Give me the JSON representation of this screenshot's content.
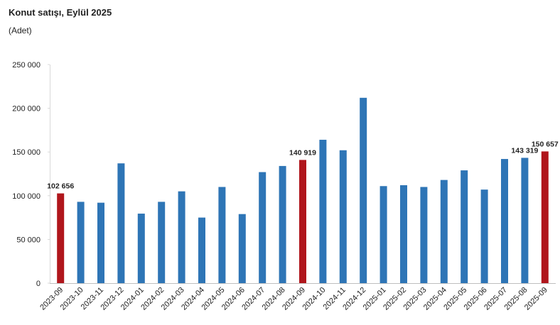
{
  "chart_data": {
    "type": "bar",
    "title": "Konut satışı, Eylül 2025",
    "subtitle": "(Adet)",
    "categories": [
      "2023-09",
      "2023-10",
      "2023-11",
      "2023-12",
      "2024-01",
      "2024-02",
      "2024-03",
      "2024-04",
      "2024-05",
      "2024-06",
      "2024-07",
      "2024-08",
      "2024-09",
      "2024-10",
      "2024-11",
      "2024-12",
      "2025-01",
      "2025-02",
      "2025-03",
      "2025-04",
      "2025-05",
      "2025-06",
      "2025-07",
      "2025-08",
      "2025-09"
    ],
    "values": [
      102656,
      93000,
      92000,
      137000,
      79500,
      93000,
      105000,
      75000,
      110000,
      79000,
      127000,
      134000,
      140919,
      164000,
      152000,
      212000,
      111000,
      112000,
      110000,
      118000,
      129000,
      107000,
      142000,
      143319,
      150657
    ],
    "value_labels": [
      "102 656",
      null,
      null,
      null,
      null,
      null,
      null,
      null,
      null,
      null,
      null,
      null,
      "140 919",
      null,
      null,
      null,
      null,
      null,
      null,
      null,
      null,
      null,
      null,
      "143 319",
      "150 657"
    ],
    "colors": [
      "#b0161c",
      "#2e75b6",
      "#2e75b6",
      "#2e75b6",
      "#2e75b6",
      "#2e75b6",
      "#2e75b6",
      "#2e75b6",
      "#2e75b6",
      "#2e75b6",
      "#2e75b6",
      "#2e75b6",
      "#b0161c",
      "#2e75b6",
      "#2e75b6",
      "#2e75b6",
      "#2e75b6",
      "#2e75b6",
      "#2e75b6",
      "#2e75b6",
      "#2e75b6",
      "#2e75b6",
      "#2e75b6",
      "#2e75b6",
      "#b0161c"
    ],
    "ylim": [
      0,
      250000
    ],
    "yticks": [
      0,
      {
        "value": 50000,
        "label": "50 000"
      },
      {
        "value": 100000,
        "label": "100 000"
      },
      {
        "value": 150000,
        "label": "150 000"
      },
      {
        "value": 200000,
        "label": "200 000"
      },
      {
        "value": 250000,
        "label": "250 000"
      }
    ],
    "grid": false
  }
}
